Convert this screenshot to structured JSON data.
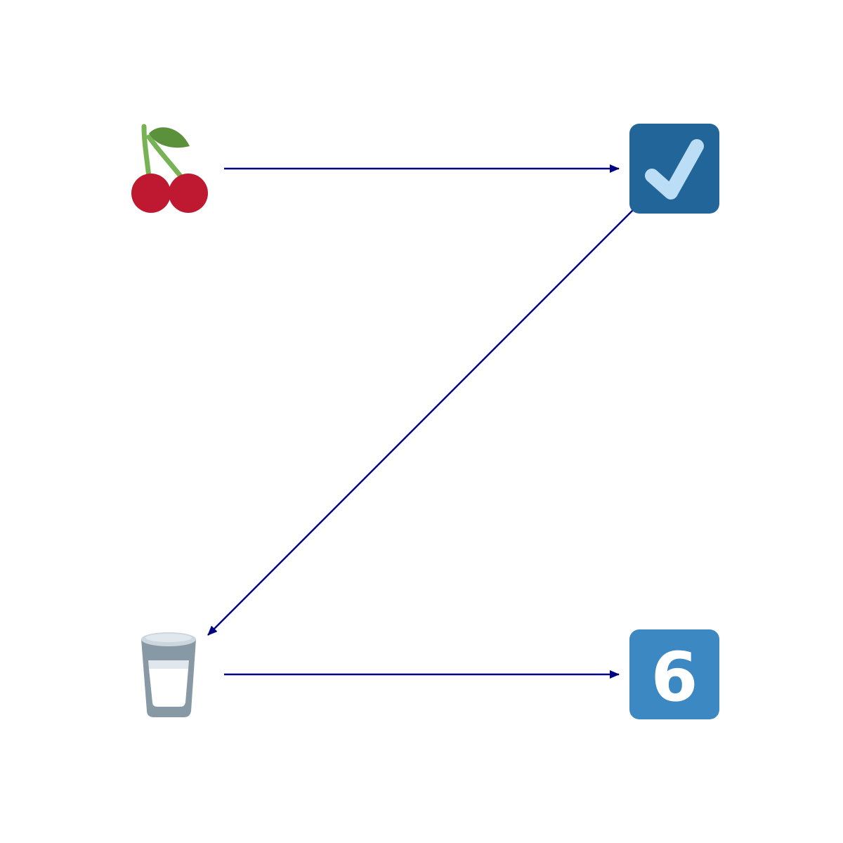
{
  "diagram": {
    "type": "flow",
    "nodes": [
      {
        "id": "cherries",
        "icon": "cherries-icon"
      },
      {
        "id": "check",
        "icon": "check-mark-button-icon"
      },
      {
        "id": "milk",
        "icon": "glass-of-milk-icon"
      },
      {
        "id": "six",
        "icon": "keycap-six-icon",
        "label": "6"
      }
    ],
    "edges": [
      {
        "from": "cherries",
        "to": "check"
      },
      {
        "from": "check",
        "to": "milk"
      },
      {
        "from": "milk",
        "to": "six"
      }
    ],
    "colors": {
      "arrow": "#000080",
      "cherry_red": "#be1931",
      "leaf_green": "#5c913b",
      "stem_green": "#77b255",
      "check_bg": "#226699",
      "check_mark": "#bbddf5",
      "keycap_bg": "#3b88c3",
      "keycap_text": "#ffffff",
      "glass_rim": "#ccd6dd",
      "glass_body": "#8899a6",
      "milk": "#ffffff"
    }
  }
}
